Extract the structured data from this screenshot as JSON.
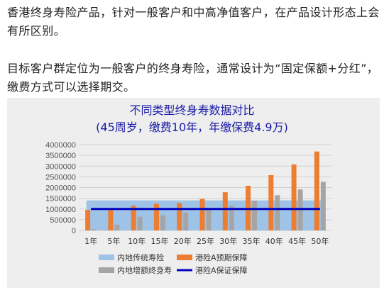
{
  "text": {
    "paragraph1": "香港终身寿险产品，针对一般客户和中高净值客户，在产品设计形态上会有所区别。",
    "paragraph2": "目标客户群定位为一般客户的终身寿险，通常设计为“固定保额+分红”，缴费方式可以选择期交。"
  },
  "chart_data": {
    "type": "bar",
    "title": "不同类型终身寿数据对比",
    "subtitle": "(45周岁，缴费10年，年缴保费4.9万)",
    "categories": [
      "1年",
      "5年",
      "10年",
      "15年",
      "20年",
      "25年",
      "30年",
      "35年",
      "40年",
      "45年",
      "50年"
    ],
    "ylim": [
      0,
      4000000
    ],
    "yticks": [
      0,
      500000,
      1000000,
      1500000,
      2000000,
      2500000,
      3000000,
      3500000,
      4000000
    ],
    "ytick_labels": [
      "0",
      "500000",
      "1000000",
      "1500000",
      "2000000",
      "2500000",
      "3000000",
      "3500000",
      "4000000"
    ],
    "grid": true,
    "legend_position": "bottom",
    "series": [
      {
        "name": "内地传统寿险",
        "type": "area",
        "color": "#9ec3e6",
        "values": [
          1400000,
          1400000,
          1400000,
          1400000,
          1400000,
          1400000,
          1400000,
          1400000,
          1400000,
          1400000,
          1400000
        ]
      },
      {
        "name": "港险A预期保障",
        "type": "bar",
        "color": "#ed7d31",
        "values": [
          960000,
          980000,
          1160000,
          1240000,
          1280000,
          1470000,
          1780000,
          2080000,
          2580000,
          3080000,
          3680000
        ]
      },
      {
        "name": "内地增额终身寿",
        "type": "bar",
        "color": "#a5a5a5",
        "values": [
          50000,
          270000,
          640000,
          710000,
          830000,
          980000,
          1150000,
          1380000,
          1640000,
          1910000,
          2270000
        ]
      },
      {
        "name": "港险A保证保障",
        "type": "line",
        "color": "#0000c0",
        "values": [
          1000000,
          1000000,
          1000000,
          1000000,
          1000000,
          1000000,
          1000000,
          1000000,
          1000000,
          1000000,
          1000000
        ]
      }
    ]
  }
}
